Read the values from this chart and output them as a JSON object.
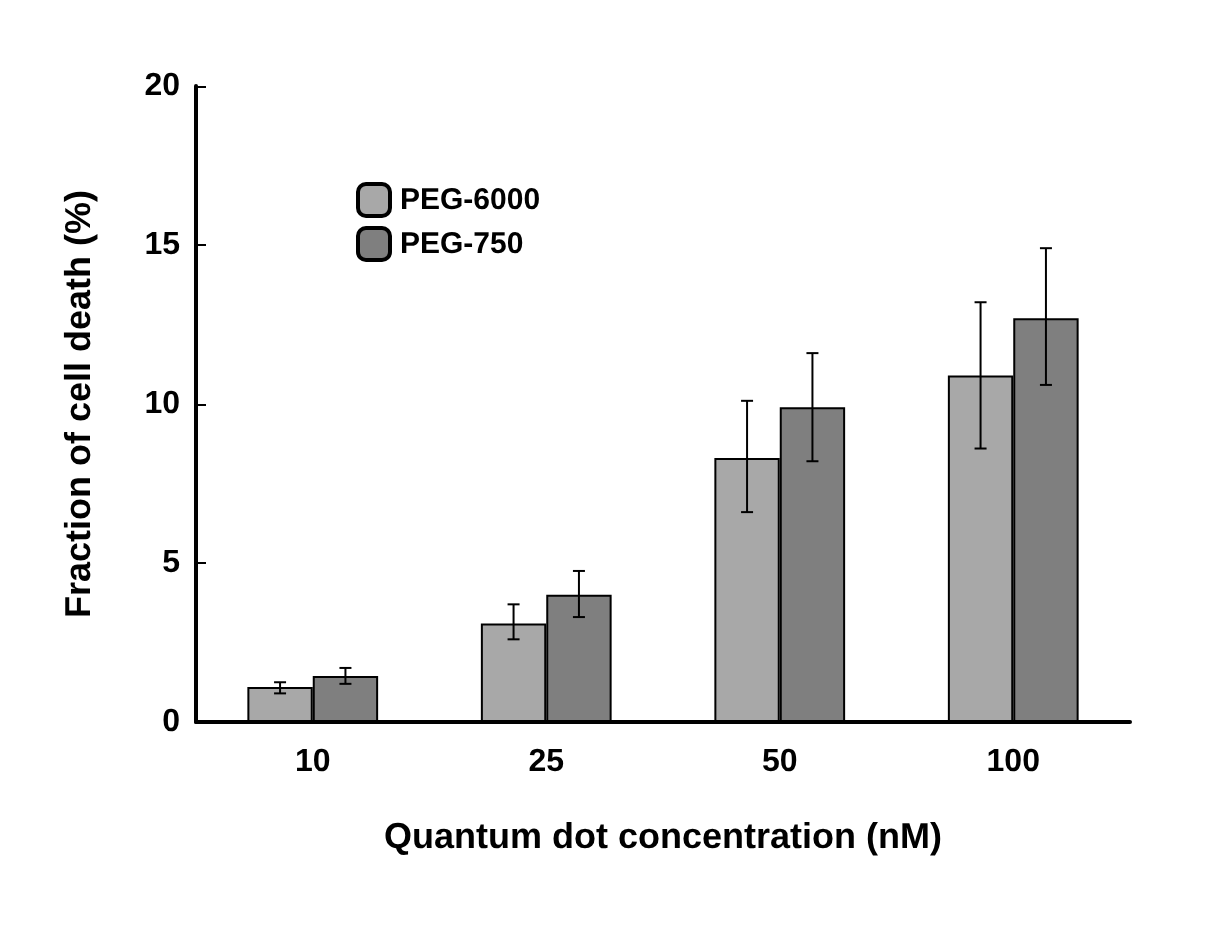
{
  "chart_data": {
    "type": "bar",
    "xlabel": "Quantum dot concentration (nM)",
    "ylabel": "Fraction of cell death (%)",
    "categories": [
      "10",
      "25",
      "50",
      "100"
    ],
    "series": [
      {
        "name": "PEG-6000",
        "color": "#a8a8a8",
        "values": [
          1.1,
          3.1,
          8.3,
          10.9
        ],
        "errors": [
          [
            0.9,
            1.25
          ],
          [
            2.6,
            3.7
          ],
          [
            6.6,
            10.1
          ],
          [
            8.6,
            13.2
          ]
        ]
      },
      {
        "name": "PEG-750",
        "color": "#7f7f7f",
        "values": [
          1.45,
          4.0,
          9.9,
          12.7
        ],
        "errors": [
          [
            1.2,
            1.7
          ],
          [
            3.3,
            4.75
          ],
          [
            8.2,
            11.6
          ],
          [
            10.6,
            14.9
          ]
        ]
      }
    ],
    "ylim": [
      0,
      20
    ],
    "yticks": [
      0,
      5,
      10,
      15,
      20
    ],
    "grid": false,
    "legend": "top left"
  }
}
